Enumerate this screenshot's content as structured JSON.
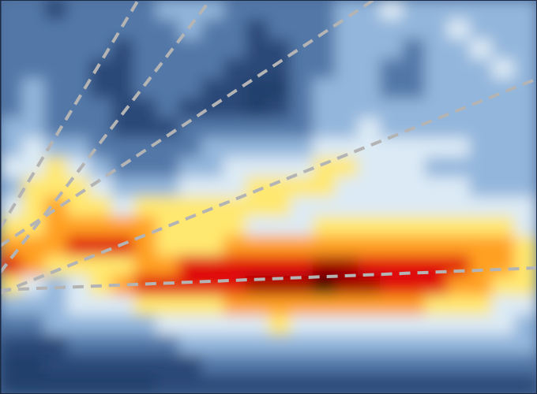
{
  "chart_data": {
    "type": "heatmap",
    "x": [
      0.5,
      1.5,
      2.5,
      3.5,
      4.5,
      5.5,
      6.5,
      7.5,
      8.5,
      9.5,
      10.5,
      11.5,
      12.5,
      13.5,
      14.5,
      15.5,
      16.5,
      17.5,
      18.5,
      19.5,
      20.5,
      21.5,
      22.5,
      23.5
    ],
    "y": [
      19.5,
      18.5,
      17.5,
      16.5,
      15.5,
      14.5,
      13.5,
      12.5,
      11.5,
      10.5,
      9.5,
      8.5,
      7.5,
      6.5,
      5.5,
      4.5,
      3.5,
      2.5,
      1.5,
      0.5
    ],
    "z": [
      [
        3,
        3,
        2,
        3,
        3,
        3,
        3,
        4,
        4,
        4,
        3,
        3,
        3,
        3,
        3,
        4,
        4,
        5,
        4,
        4,
        4,
        4,
        4,
        4
      ],
      [
        3,
        3,
        3,
        3,
        3,
        3,
        3,
        3,
        4,
        3,
        3,
        2,
        3,
        3,
        3,
        4,
        4,
        4,
        4,
        4,
        5,
        4,
        4,
        4
      ],
      [
        3,
        3,
        3,
        3,
        3,
        2,
        3,
        3,
        3,
        3,
        3,
        2,
        2,
        3,
        3,
        4,
        4,
        4,
        3,
        4,
        4,
        5,
        4,
        4
      ],
      [
        3,
        3,
        3,
        3,
        2,
        2,
        3,
        3,
        3,
        3,
        2,
        2,
        2,
        3,
        3,
        4,
        4,
        3,
        3,
        4,
        4,
        4,
        5,
        4
      ],
      [
        3,
        4,
        3,
        3,
        2,
        2,
        3,
        3,
        3,
        2,
        2,
        1,
        1,
        3,
        4,
        4,
        4,
        3,
        3,
        4,
        4,
        4,
        4,
        4
      ],
      [
        3,
        4,
        3,
        3,
        3,
        2,
        2,
        3,
        2,
        2,
        2,
        1,
        2,
        3,
        4,
        4,
        4,
        4,
        4,
        4,
        4,
        4,
        4,
        4
      ],
      [
        4,
        4,
        3,
        3,
        3,
        2,
        2,
        2,
        3,
        3,
        3,
        3,
        3,
        3,
        4,
        4,
        5,
        4,
        4,
        4,
        4,
        4,
        4,
        4
      ],
      [
        4,
        5,
        4,
        4,
        3,
        3,
        3,
        3,
        3,
        4,
        4,
        4,
        4,
        4,
        5,
        5,
        5,
        5,
        5,
        5,
        5,
        4,
        4,
        4
      ],
      [
        5,
        5,
        6,
        5,
        4,
        3,
        3,
        3,
        4,
        4,
        5,
        5,
        5,
        5,
        6,
        6,
        5,
        5,
        5,
        4,
        4,
        4,
        4,
        4
      ],
      [
        4,
        6,
        6,
        6,
        5,
        4,
        4,
        4,
        5,
        5,
        5,
        6,
        6,
        6,
        6,
        5,
        5,
        5,
        5,
        5,
        5,
        4,
        4,
        4
      ],
      [
        5,
        6,
        7,
        6,
        6,
        5,
        6,
        6,
        6,
        6,
        6,
        6,
        6,
        5,
        5,
        5,
        5,
        5,
        5,
        5,
        5,
        5,
        5,
        5
      ],
      [
        6,
        6,
        7,
        7,
        7,
        7,
        7,
        6,
        6,
        6,
        6,
        5,
        5,
        5,
        6,
        6,
        6,
        6,
        6,
        6,
        6,
        6,
        6,
        5
      ],
      [
        7,
        7,
        7,
        8,
        8,
        8,
        7,
        6,
        6,
        6,
        7,
        7,
        7,
        7,
        7,
        7,
        7,
        7,
        7,
        7,
        7,
        7,
        7,
        6
      ],
      [
        8,
        7,
        6,
        6,
        6,
        6,
        7,
        7,
        8,
        8,
        8,
        8,
        8,
        8,
        9,
        9,
        8,
        8,
        8,
        8,
        8,
        7,
        7,
        6
      ],
      [
        6,
        5,
        4,
        5,
        6,
        7,
        8,
        8,
        8,
        8,
        8,
        9,
        9,
        9,
        10,
        9,
        9,
        8,
        8,
        8,
        7,
        7,
        6,
        6
      ],
      [
        4,
        4,
        4,
        5,
        5,
        5,
        6,
        6,
        6,
        6,
        7,
        7,
        7,
        7,
        7,
        7,
        7,
        7,
        7,
        6,
        6,
        6,
        5,
        5
      ],
      [
        3,
        3,
        4,
        4,
        4,
        4,
        4,
        5,
        5,
        5,
        5,
        5,
        6,
        5,
        5,
        5,
        5,
        5,
        5,
        5,
        5,
        5,
        5,
        4
      ],
      [
        2,
        2,
        2,
        3,
        3,
        3,
        3,
        3,
        4,
        4,
        4,
        4,
        4,
        4,
        4,
        4,
        4,
        4,
        4,
        4,
        4,
        4,
        4,
        4
      ],
      [
        1,
        1,
        2,
        2,
        2,
        2,
        2,
        2,
        2,
        3,
        3,
        3,
        3,
        3,
        3,
        3,
        3,
        3,
        3,
        3,
        3,
        3,
        3,
        3
      ],
      [
        1,
        1,
        1,
        1,
        1,
        1,
        1,
        2,
        2,
        2,
        2,
        2,
        2,
        2,
        2,
        2,
        2,
        2,
        2,
        2,
        2,
        2,
        2,
        2
      ]
    ],
    "xlim": [
      0,
      24
    ],
    "ylim": [
      0,
      20
    ],
    "tick_labels": false,
    "colorbar": {
      "range": [
        0,
        10
      ]
    },
    "series": [
      {
        "type": "line",
        "line_style": "dashed",
        "color": "#b4b4b4",
        "x": [
          0,
          24
        ],
        "y": [
          5.28,
          6.4
        ]
      },
      {
        "type": "line",
        "line_style": "dashed",
        "color": "#b4b4b4",
        "x": [
          0,
          24
        ],
        "y": [
          5.12,
          16.0
        ]
      },
      {
        "type": "line",
        "line_style": "dashed",
        "color": "#b4b4b4",
        "x": [
          0,
          16.7
        ],
        "y": [
          7.52,
          20
        ]
      },
      {
        "type": "line",
        "line_style": "dashed",
        "color": "#b4b4b4",
        "x": [
          0,
          9.4
        ],
        "y": [
          6.16,
          20
        ]
      },
      {
        "type": "line",
        "line_style": "dashed",
        "color": "#b4b4b4",
        "x": [
          0,
          6.18
        ],
        "y": [
          8.4,
          20
        ]
      }
    ]
  }
}
